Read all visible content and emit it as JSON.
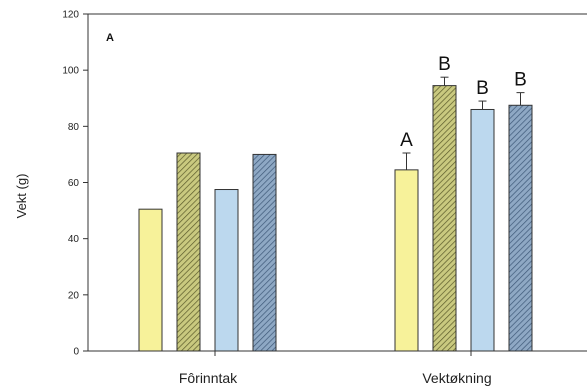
{
  "chart_data": {
    "type": "bar",
    "panel_label": "A",
    "xlabel": "",
    "ylabel": "Vekt (g)",
    "ylim": [
      0,
      120
    ],
    "yticks": [
      0,
      20,
      40,
      60,
      80,
      100,
      120
    ],
    "grid": false,
    "categories": [
      "Fôrinntak",
      "Vektøkning"
    ],
    "series": [
      {
        "color": "#f7f29a",
        "hatch": false,
        "values": [
          50.5,
          64.5
        ],
        "errors": [
          null,
          6
        ],
        "sig": [
          "",
          "A"
        ]
      },
      {
        "color": "#c2c27a",
        "hatch": true,
        "values": [
          70.5,
          94.5
        ],
        "errors": [
          null,
          3
        ],
        "sig": [
          "",
          "B"
        ]
      },
      {
        "color": "#bcd8ee",
        "hatch": false,
        "values": [
          57.5,
          86
        ],
        "errors": [
          null,
          3
        ],
        "sig": [
          "",
          "B"
        ]
      },
      {
        "color": "#7b98b6",
        "hatch": true,
        "values": [
          70,
          87.5
        ],
        "errors": [
          null,
          4.5
        ],
        "sig": [
          "",
          "B"
        ]
      }
    ]
  }
}
